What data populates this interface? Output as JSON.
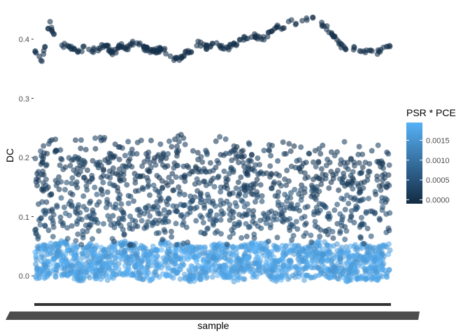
{
  "chart_data": {
    "type": "scatter",
    "title": "",
    "xlabel": "sample",
    "ylabel": "DC",
    "ylim": [
      -0.03,
      0.445
    ],
    "y_ticks": [
      "0.0",
      "0.1",
      "0.2",
      "0.3",
      "0.4"
    ],
    "y_tick_values": [
      0.0,
      0.1,
      0.2,
      0.3,
      0.4
    ],
    "x_tick_labels": "unreadable (dense overlapping labels)",
    "grid": false,
    "color_legend": {
      "title": "PSR * PCE",
      "placement": "right",
      "range": [
        -0.0001,
        0.00195
      ],
      "ticks": [
        "0.0000",
        "0.0005",
        "0.0010",
        "0.0015"
      ],
      "tick_values": [
        0.0,
        0.0005,
        0.001,
        0.0015
      ],
      "low_color": "#132b43",
      "high_color": "#56b1f7"
    },
    "series": [
      {
        "band": "top",
        "approx_color_value": 0.0,
        "x": [
          0,
          2,
          4,
          6,
          8,
          10,
          12,
          14,
          16,
          18,
          20,
          22,
          24,
          26,
          28,
          30,
          32,
          34,
          36,
          38,
          40,
          42,
          44,
          46,
          48,
          50,
          52,
          54,
          56,
          58,
          60,
          62,
          64,
          66,
          68,
          70,
          72,
          74,
          76,
          78,
          80,
          82,
          84,
          86,
          88,
          90,
          92,
          94,
          96,
          98,
          100
        ],
        "y": [
          0.38,
          0.36,
          0.43,
          0.395,
          0.39,
          0.385,
          0.38,
          0.385,
          0.38,
          0.385,
          0.39,
          0.375,
          0.39,
          0.385,
          0.395,
          0.39,
          0.38,
          0.38,
          0.385,
          0.37,
          0.365,
          0.375,
          0.38,
          0.395,
          0.385,
          0.39,
          0.39,
          0.385,
          0.39,
          0.4,
          0.405,
          0.405,
          0.4,
          0.41,
          0.42,
          0.42,
          0.43,
          0.425,
          0.435,
          0.435,
          0.43,
          0.42,
          0.405,
          0.39,
          0.385,
          0.385,
          0.38,
          0.38,
          0.375,
          0.385,
          0.385
        ]
      },
      {
        "band": "mid-upper",
        "approx_color_value": 0.0002,
        "x": [
          0,
          4,
          8,
          12,
          16,
          20,
          24,
          28,
          32,
          36,
          40,
          44,
          48,
          52,
          56,
          60,
          64,
          68,
          72,
          76,
          80,
          84,
          88,
          92,
          96,
          100
        ],
        "y": [
          0.175,
          0.18,
          0.185,
          0.18,
          0.19,
          0.185,
          0.18,
          0.185,
          0.18,
          0.185,
          0.19,
          0.185,
          0.18,
          0.185,
          0.18,
          0.175,
          0.18,
          0.175,
          0.18,
          0.175,
          0.18,
          0.185,
          0.18,
          0.175,
          0.18,
          0.175
        ]
      },
      {
        "band": "mid-lower",
        "approx_color_value": 0.0004,
        "x": [
          0,
          4,
          8,
          12,
          16,
          20,
          24,
          28,
          32,
          36,
          40,
          44,
          48,
          52,
          56,
          60,
          64,
          68,
          72,
          76,
          80,
          84,
          88,
          92,
          96,
          100
        ],
        "y": [
          0.1,
          0.105,
          0.11,
          0.1,
          0.105,
          0.11,
          0.105,
          0.1,
          0.11,
          0.105,
          0.1,
          0.105,
          0.11,
          0.1,
          0.105,
          0.11,
          0.105,
          0.1,
          0.105,
          0.11,
          0.1,
          0.105,
          0.11,
          0.1,
          0.105,
          0.1
        ]
      },
      {
        "band": "bottom",
        "approx_color_value": 0.0017,
        "x": [
          0,
          4,
          8,
          12,
          16,
          20,
          24,
          28,
          32,
          36,
          40,
          44,
          48,
          52,
          56,
          60,
          64,
          68,
          72,
          76,
          80,
          84,
          88,
          92,
          96,
          100
        ],
        "y": [
          0.02,
          0.025,
          0.03,
          0.02,
          0.025,
          0.02,
          0.03,
          0.025,
          0.02,
          0.03,
          0.025,
          0.02,
          0.025,
          0.03,
          0.02,
          0.025,
          0.03,
          0.02,
          0.025,
          0.02,
          0.03,
          0.025,
          0.02,
          0.025,
          0.02,
          0.025
        ]
      }
    ]
  }
}
